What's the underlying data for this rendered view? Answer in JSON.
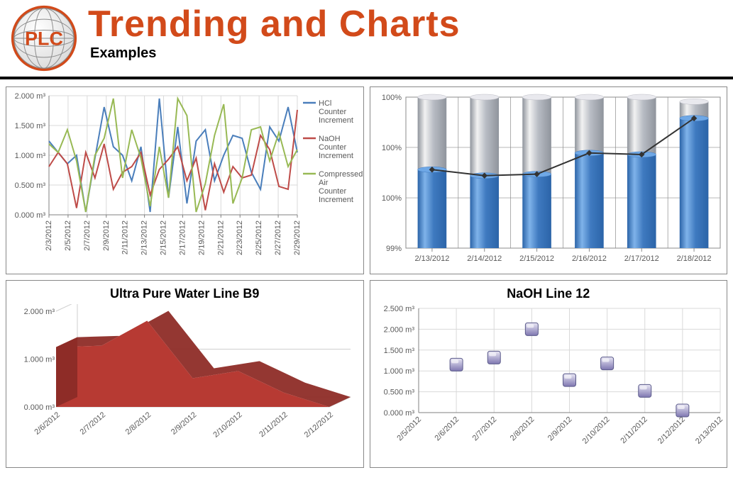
{
  "header": {
    "title": "Trending and Charts",
    "subtitle": "Examples",
    "logo_text": "PLC",
    "title_color": "#d24a1a",
    "logo_ring_color": "#d24a1a",
    "logo_globe_stroke": "#7f7f7f"
  },
  "chart1": {
    "type": "line",
    "y_label_unit": "m³",
    "y_ticks": [
      "0.000 m³",
      "0.500 m³",
      "1.000 m³",
      "1.500 m³",
      "2.000 m³"
    ],
    "ylim": [
      0,
      2.1
    ],
    "x_labels": [
      "2/3/2012",
      "2/5/2012",
      "2/7/2012",
      "2/9/2012",
      "2/11/2012",
      "2/13/2012",
      "2/15/2012",
      "2/17/2012",
      "2/19/2012",
      "2/21/2012",
      "2/23/2012",
      "2/25/2012",
      "2/27/2012",
      "2/29/2012"
    ],
    "grid_color": "#d9d9d9",
    "axis_color": "#808080",
    "background": "#ffffff",
    "series": [
      {
        "name": "HCl Counter Increment",
        "color": "#4a7ebb",
        "values": [
          1.3,
          1.1,
          0.9,
          1.05,
          0.05,
          1.0,
          1.9,
          1.2,
          1.05,
          0.6,
          1.2,
          0.05,
          2.05,
          0.3,
          1.55,
          0.2,
          1.3,
          1.5,
          0.6,
          1.05,
          1.4,
          1.35,
          0.75,
          0.45,
          1.55,
          1.3,
          1.9,
          1.1
        ]
      },
      {
        "name": "NaOH Counter Increment",
        "color": "#be4b48",
        "values": [
          0.85,
          1.1,
          0.9,
          0.12,
          1.1,
          0.65,
          1.25,
          0.45,
          0.75,
          0.85,
          1.1,
          0.35,
          0.8,
          0.98,
          1.2,
          0.6,
          1.0,
          0.08,
          0.9,
          0.4,
          0.85,
          0.65,
          0.7,
          1.4,
          1.15,
          0.5,
          0.45,
          1.85
        ]
      },
      {
        "name": "Compressed Air Counter Increment",
        "color": "#98b954",
        "values": [
          1.25,
          1.1,
          1.5,
          0.95,
          0.05,
          1.05,
          1.35,
          2.05,
          0.65,
          1.5,
          1.0,
          0.15,
          1.2,
          0.3,
          2.05,
          1.75,
          0.05,
          0.55,
          1.4,
          1.95,
          0.2,
          0.65,
          1.5,
          1.55,
          0.95,
          1.45,
          0.85,
          1.15
        ]
      }
    ],
    "legend_labels": [
      "HCl Counter Increment",
      "NaOH Counter Increment",
      "Compressed Air Counter Increment"
    ]
  },
  "chart2": {
    "type": "bar+line",
    "y_ticks": [
      "99%",
      "100%",
      "100%",
      "100%"
    ],
    "y_positions": [
      0,
      0.333,
      0.667,
      1.0
    ],
    "x_labels": [
      "2/13/2012",
      "2/14/2012",
      "2/15/2012",
      "2/16/2012",
      "2/17/2012",
      "2/18/2012"
    ],
    "grid_color": "#8b8b8b",
    "axis_color": "#808080",
    "bar_lower_color_top": "#6fa8e6",
    "bar_lower_color_bottom": "#2b64a8",
    "bar_upper_color_top": "#eeeeee",
    "bar_upper_color_bottom": "#a4a9b0",
    "bar_width": 0.55,
    "bars": [
      {
        "lower": 0.52,
        "upper": 1.0
      },
      {
        "lower": 0.48,
        "upper": 1.0
      },
      {
        "lower": 0.49,
        "upper": 1.0
      },
      {
        "lower": 0.63,
        "upper": 1.0
      },
      {
        "lower": 0.62,
        "upper": 1.0
      },
      {
        "lower": 0.86,
        "upper": 0.97
      }
    ],
    "line_color": "#333333",
    "line_values": [
      0.52,
      0.48,
      0.49,
      0.63,
      0.62,
      0.86
    ]
  },
  "chart3": {
    "type": "area",
    "title": "Ultra Pure Water Line B9",
    "y_ticks": [
      "0.000 m³",
      "1.000 m³",
      "2.000 m³"
    ],
    "ylim": [
      0,
      2.0
    ],
    "x_labels": [
      "2/6/2012",
      "2/7/2012",
      "2/8/2012",
      "2/9/2012",
      "2/10/2012",
      "2/11/2012",
      "2/12/2012"
    ],
    "values": [
      1.25,
      1.28,
      1.8,
      0.6,
      0.75,
      0.3,
      0.0
    ],
    "fill_color": "#b73a33",
    "fill_color_dark": "#8e2c27",
    "background": "#ffffff",
    "axis_color": "#808080"
  },
  "chart4": {
    "type": "scatter",
    "title": "NaOH Line 12",
    "y_ticks": [
      "0.000 m³",
      "0.500 m³",
      "1.000 m³",
      "1.500 m³",
      "2.000 m³",
      "2.500 m³"
    ],
    "ylim": [
      0,
      2.5
    ],
    "x_labels": [
      "2/5/2012",
      "2/6/2012",
      "2/7/2012",
      "2/8/2012",
      "2/9/2012",
      "2/10/2012",
      "2/11/2012",
      "2/12/2012",
      "2/13/2012"
    ],
    "points": [
      {
        "x": 1,
        "y": 1.15
      },
      {
        "x": 2,
        "y": 1.32
      },
      {
        "x": 3,
        "y": 2.0
      },
      {
        "x": 4,
        "y": 0.78
      },
      {
        "x": 5,
        "y": 1.18
      },
      {
        "x": 6,
        "y": 0.52
      },
      {
        "x": 7,
        "y": 0.05
      }
    ],
    "marker_color_top": "#e8e6f4",
    "marker_color_bottom": "#7e76b0",
    "grid_color": "#d9d9d9",
    "axis_color": "#808080"
  }
}
